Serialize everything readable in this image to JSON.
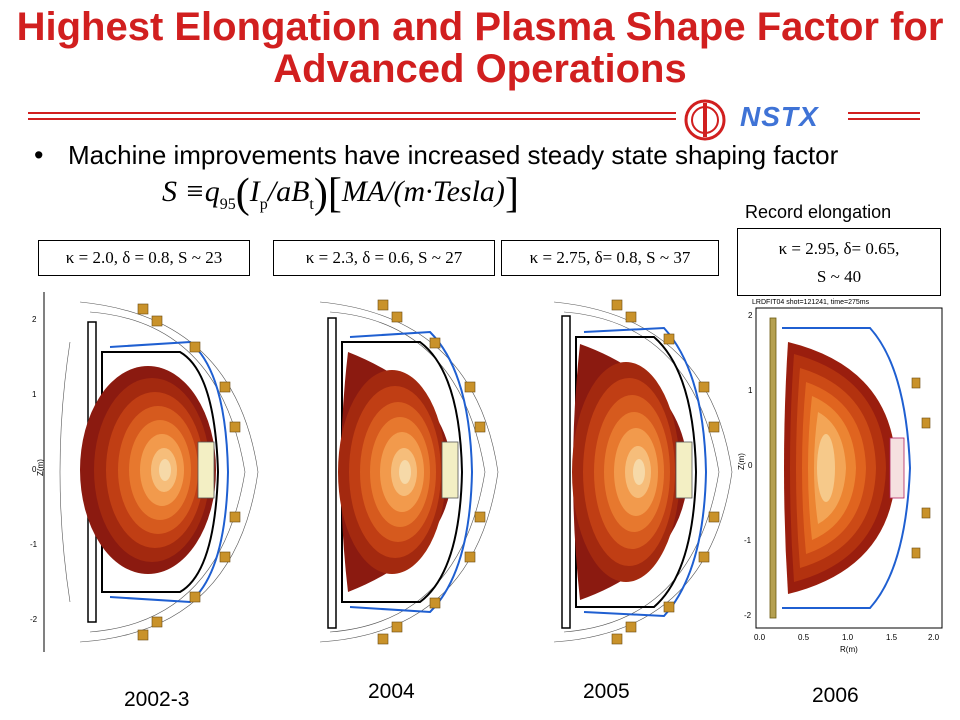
{
  "slide": {
    "title": "Highest Elongation and Plasma Shape Factor for Advanced Operations",
    "logo_text": "NSTX",
    "bullet": "Machine improvements have increased steady state shaping factor",
    "formula": {
      "lhs": "S",
      "equiv": "≡",
      "q": "q",
      "q_sub": "95",
      "ip": "I",
      "ip_sub": "p",
      "rest1": "/aB",
      "bt_sub": "t",
      "units": "MA/(m·Tesla)"
    },
    "record_label": "Record elongation"
  },
  "panels": [
    {
      "label": "κ = 2.0,  δ = 0.8, S ~ 23",
      "year": "2002-3"
    },
    {
      "label": "κ = 2.3,  δ = 0.6, S ~ 27",
      "year": "2004"
    },
    {
      "label": "κ = 2.75, δ= 0.8, S ~ 37",
      "year": "2005"
    },
    {
      "label_line1": "κ = 2.95,  δ= 0.65,",
      "label_line2": "S ~ 40",
      "year": "2006",
      "plot_header": "LRDFIT04 shot=121241, time=275ms"
    }
  ],
  "axes": {
    "z_label": "Z(m)",
    "r_label": "R(m)",
    "z_ticks": [
      "2",
      "1",
      "0",
      "-1",
      "-2"
    ],
    "r_ticks": [
      "0.0",
      "0.5",
      "1.0",
      "1.5",
      "2.0"
    ]
  },
  "colors": {
    "title_red": "#d11f1f",
    "nstx_blue": "#3f73d6",
    "plasma_outer": "#8b1a10",
    "plasma_inner": "#f6d9a8"
  }
}
